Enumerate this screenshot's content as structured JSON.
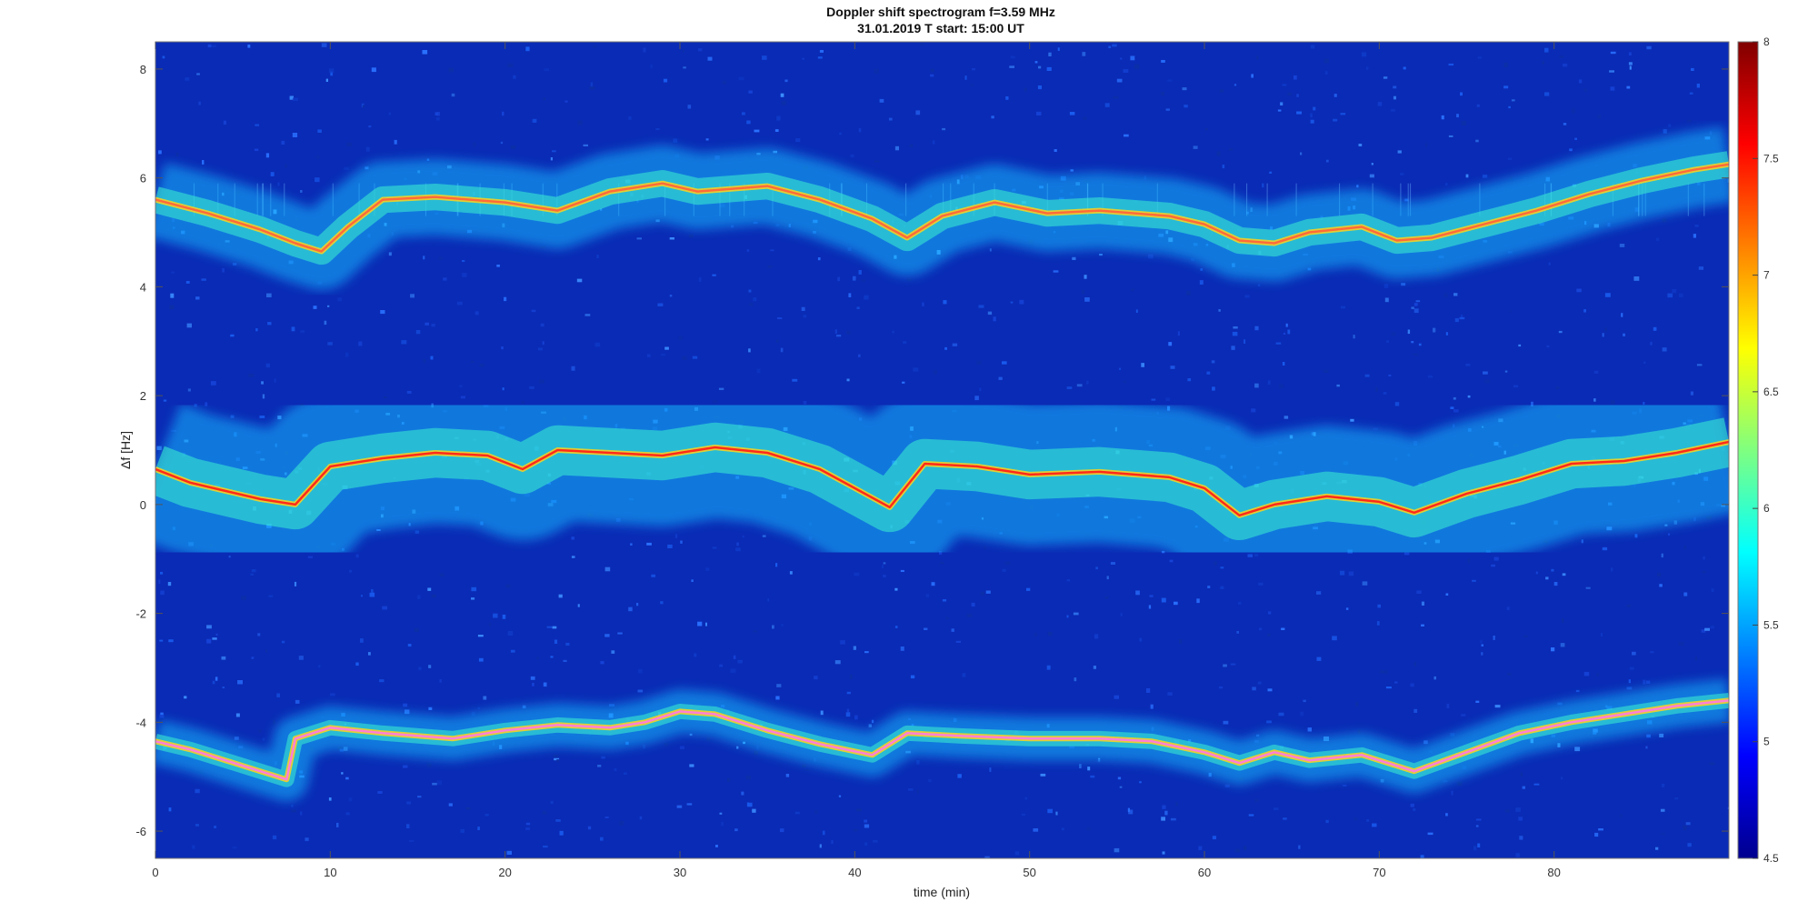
{
  "chart_data": {
    "type": "heatmap",
    "title": "Doppler shift spectrogram f=3.59 MHz",
    "subtitle": "31.01.2019    T start: 15:00 UT",
    "xlabel": "time (min)",
    "ylabel": "Δf [Hz]",
    "xlim": [
      0,
      90
    ],
    "ylim": [
      -6.5,
      8.5
    ],
    "x_ticks": [
      "0",
      "10",
      "20",
      "30",
      "40",
      "50",
      "60",
      "70",
      "80"
    ],
    "y_ticks": [
      "-6",
      "-4",
      "-2",
      "0",
      "2",
      "4",
      "6",
      "8"
    ],
    "colorbar": {
      "colormap": "jet",
      "range": [
        4.5,
        8
      ],
      "ticks": [
        "4.5",
        "5",
        "5.5",
        "6",
        "6.5",
        "7",
        "7.5",
        "8"
      ]
    },
    "background_color": "#0a2bb5",
    "traces": [
      {
        "mode": "upper",
        "points": [
          [
            0,
            5.6
          ],
          [
            3,
            5.35
          ],
          [
            6,
            5.05
          ],
          [
            8,
            4.8
          ],
          [
            9.5,
            4.65
          ],
          [
            11,
            5.1
          ],
          [
            13,
            5.6
          ],
          [
            16,
            5.65
          ],
          [
            20,
            5.55
          ],
          [
            23,
            5.4
          ],
          [
            26,
            5.75
          ],
          [
            29,
            5.9
          ],
          [
            31,
            5.75
          ],
          [
            33,
            5.8
          ],
          [
            35,
            5.85
          ],
          [
            38,
            5.6
          ],
          [
            41,
            5.25
          ],
          [
            43,
            4.9
          ],
          [
            45,
            5.3
          ],
          [
            48,
            5.55
          ],
          [
            51,
            5.35
          ],
          [
            54,
            5.4
          ],
          [
            58,
            5.3
          ],
          [
            60,
            5.15
          ],
          [
            62,
            4.85
          ],
          [
            64,
            4.8
          ],
          [
            66,
            5.0
          ],
          [
            69,
            5.1
          ],
          [
            71,
            4.85
          ],
          [
            73,
            4.9
          ],
          [
            76,
            5.15
          ],
          [
            79,
            5.4
          ],
          [
            82,
            5.7
          ],
          [
            85,
            5.95
          ],
          [
            88,
            6.15
          ],
          [
            90,
            6.25
          ]
        ]
      },
      {
        "mode": "middle",
        "points": [
          [
            0,
            0.65
          ],
          [
            2,
            0.4
          ],
          [
            4,
            0.25
          ],
          [
            6,
            0.1
          ],
          [
            8,
            0.0
          ],
          [
            10,
            0.7
          ],
          [
            13,
            0.85
          ],
          [
            16,
            0.95
          ],
          [
            19,
            0.9
          ],
          [
            21,
            0.65
          ],
          [
            23,
            1.0
          ],
          [
            26,
            0.95
          ],
          [
            29,
            0.9
          ],
          [
            32,
            1.05
          ],
          [
            35,
            0.95
          ],
          [
            38,
            0.65
          ],
          [
            40,
            0.3
          ],
          [
            42,
            -0.05
          ],
          [
            44,
            0.75
          ],
          [
            47,
            0.7
          ],
          [
            50,
            0.55
          ],
          [
            54,
            0.6
          ],
          [
            58,
            0.5
          ],
          [
            60,
            0.3
          ],
          [
            62,
            -0.2
          ],
          [
            64,
            0.0
          ],
          [
            67,
            0.15
          ],
          [
            70,
            0.05
          ],
          [
            72,
            -0.15
          ],
          [
            75,
            0.2
          ],
          [
            78,
            0.45
          ],
          [
            81,
            0.75
          ],
          [
            84,
            0.8
          ],
          [
            87,
            0.95
          ],
          [
            90,
            1.15
          ]
        ]
      },
      {
        "mode": "lower",
        "points": [
          [
            0,
            -4.35
          ],
          [
            2,
            -4.5
          ],
          [
            4,
            -4.7
          ],
          [
            6,
            -4.9
          ],
          [
            7.5,
            -5.05
          ],
          [
            8,
            -4.3
          ],
          [
            10,
            -4.1
          ],
          [
            13,
            -4.2
          ],
          [
            17,
            -4.3
          ],
          [
            20,
            -4.15
          ],
          [
            23,
            -4.05
          ],
          [
            26,
            -4.1
          ],
          [
            28,
            -4.0
          ],
          [
            30,
            -3.8
          ],
          [
            32,
            -3.85
          ],
          [
            35,
            -4.15
          ],
          [
            38,
            -4.4
          ],
          [
            41,
            -4.6
          ],
          [
            43,
            -4.2
          ],
          [
            46,
            -4.25
          ],
          [
            50,
            -4.3
          ],
          [
            54,
            -4.3
          ],
          [
            57,
            -4.35
          ],
          [
            60,
            -4.55
          ],
          [
            62,
            -4.75
          ],
          [
            64,
            -4.55
          ],
          [
            66,
            -4.7
          ],
          [
            69,
            -4.6
          ],
          [
            72,
            -4.9
          ],
          [
            75,
            -4.55
          ],
          [
            78,
            -4.2
          ],
          [
            81,
            -4.0
          ],
          [
            84,
            -3.85
          ],
          [
            87,
            -3.7
          ],
          [
            90,
            -3.6
          ]
        ]
      }
    ]
  }
}
